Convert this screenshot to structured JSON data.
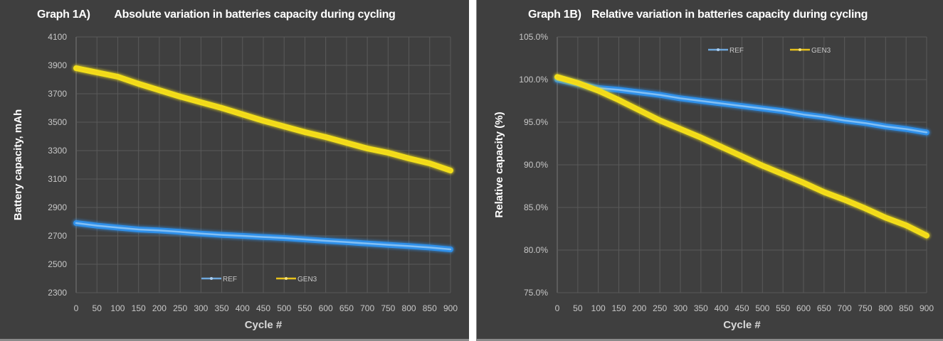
{
  "colors": {
    "background": "#3f3f3f",
    "grid": "#5a5a5a",
    "ref": "#2f8fe8",
    "ref_core": "#8cc4f5",
    "gen3": "#f2df1a",
    "gen3_core": "#f5d21a"
  },
  "chart_data": [
    {
      "type": "line",
      "label": "Graph 1A)",
      "title": "Absolute variation in batteries capacity during cycling",
      "xlabel": "Cycle #",
      "ylabel": "Battery capacity, mAh",
      "xlim": [
        0,
        900
      ],
      "ylim": [
        2300,
        4100
      ],
      "xticks": [
        0,
        50,
        100,
        150,
        200,
        250,
        300,
        350,
        400,
        450,
        500,
        550,
        600,
        650,
        700,
        750,
        800,
        850,
        900
      ],
      "yticks": [
        2300,
        2500,
        2700,
        2900,
        3100,
        3300,
        3500,
        3700,
        3900,
        4100
      ],
      "ytick_labels": [
        "2300",
        "2500",
        "2700",
        "2900",
        "3100",
        "3300",
        "3500",
        "3700",
        "3900",
        "4100"
      ],
      "grid": true,
      "legend": "bottom-center",
      "x": [
        0,
        50,
        100,
        150,
        200,
        250,
        300,
        350,
        400,
        450,
        500,
        550,
        600,
        650,
        700,
        750,
        800,
        850,
        900
      ],
      "series": [
        {
          "name": "REF",
          "values": [
            2790,
            2772,
            2758,
            2745,
            2738,
            2728,
            2716,
            2707,
            2700,
            2692,
            2685,
            2675,
            2665,
            2656,
            2646,
            2637,
            2628,
            2618,
            2605
          ]
        },
        {
          "name": "GEN3",
          "values": [
            3880,
            3850,
            3820,
            3770,
            3725,
            3680,
            3640,
            3600,
            3555,
            3510,
            3470,
            3430,
            3395,
            3355,
            3315,
            3285,
            3245,
            3210,
            3160
          ]
        }
      ]
    },
    {
      "type": "line",
      "label": "Graph 1B)",
      "title": "Relative variation in batteries capacity during cycling",
      "xlabel": "Cycle #",
      "ylabel": "Relative capacity (%)",
      "xlim": [
        0,
        900
      ],
      "ylim": [
        75.0,
        105.0
      ],
      "xticks": [
        0,
        50,
        100,
        150,
        200,
        250,
        300,
        350,
        400,
        450,
        500,
        550,
        600,
        650,
        700,
        750,
        800,
        850,
        900
      ],
      "yticks": [
        75,
        80,
        85,
        90,
        95,
        100,
        105
      ],
      "ytick_labels": [
        "75.0%",
        "80.0%",
        "85.0%",
        "90.0%",
        "95.0%",
        "100.0%",
        "105.0%"
      ],
      "grid": true,
      "legend": "top-center",
      "x": [
        0,
        50,
        100,
        150,
        200,
        250,
        300,
        350,
        400,
        450,
        500,
        550,
        600,
        650,
        700,
        750,
        800,
        850,
        900
      ],
      "series": [
        {
          "name": "REF",
          "values": [
            100.0,
            99.5,
            99.0,
            98.8,
            98.5,
            98.2,
            97.8,
            97.5,
            97.2,
            96.9,
            96.6,
            96.3,
            95.9,
            95.6,
            95.2,
            94.9,
            94.5,
            94.2,
            93.8
          ]
        },
        {
          "name": "GEN3",
          "values": [
            100.3,
            99.6,
            98.7,
            97.6,
            96.4,
            95.2,
            94.2,
            93.2,
            92.1,
            91.0,
            89.9,
            88.9,
            87.9,
            86.8,
            85.9,
            84.9,
            83.8,
            82.9,
            81.7
          ]
        }
      ]
    }
  ]
}
